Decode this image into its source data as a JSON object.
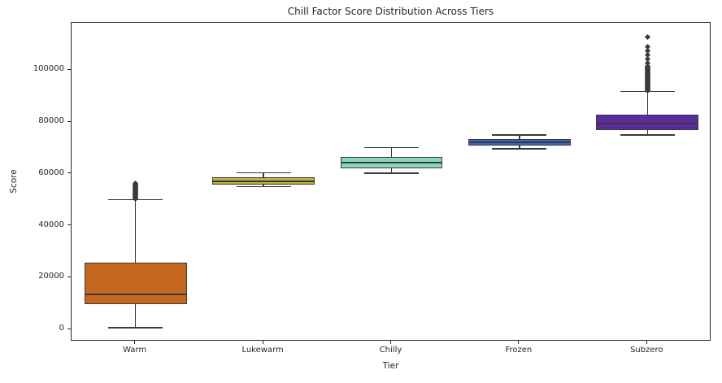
{
  "chart_data": {
    "type": "box",
    "title": "Chill Factor Score Distribution Across Tiers",
    "xlabel": "Tier",
    "ylabel": "Score",
    "categories": [
      "Warm",
      "Lukewarm",
      "Chilly",
      "Frozen",
      "Subzero"
    ],
    "ylim": [
      -4700,
      118300
    ],
    "yticks": [
      0,
      20000,
      40000,
      60000,
      80000,
      100000
    ],
    "grid": false,
    "legend": false,
    "edge_color": "#3a3a3a",
    "spine_color": "#262626",
    "background_color": "#ffffff",
    "series": [
      {
        "name": "Warm",
        "color": "#c5671e",
        "whislo": 600,
        "q1": 9700,
        "med": 13500,
        "q3": 25800,
        "whishi": 50000,
        "outliers": [
          50400,
          50650,
          50900,
          51150,
          51400,
          51650,
          51900,
          52150,
          52400,
          52650,
          52900,
          53150,
          53400,
          53650,
          53900,
          54150,
          54400,
          54650,
          54900,
          55150,
          55400,
          55650,
          55900,
          56150,
          56300
        ]
      },
      {
        "name": "Lukewarm",
        "color": "#c2b13e",
        "whislo": 55000,
        "q1": 55900,
        "med": 57200,
        "q3": 58600,
        "whishi": 60400,
        "outliers": []
      },
      {
        "name": "Chilly",
        "color": "#87d7bf",
        "whislo": 60200,
        "q1": 62000,
        "med": 64200,
        "q3": 66500,
        "whishi": 70100,
        "outliers": []
      },
      {
        "name": "Frozen",
        "color": "#3e63c5",
        "whislo": 69700,
        "q1": 70800,
        "med": 72300,
        "q3": 73500,
        "whishi": 75000,
        "outliers": []
      },
      {
        "name": "Subzero",
        "color": "#5b2c9e",
        "whislo": 75000,
        "q1": 77000,
        "med": 79400,
        "q3": 82800,
        "whishi": 91800,
        "outliers": [
          92200,
          92500,
          92800,
          93100,
          93400,
          93700,
          94000,
          94300,
          94600,
          94900,
          95200,
          95500,
          95800,
          96100,
          96400,
          96700,
          97000,
          97300,
          97600,
          97900,
          98200,
          98500,
          98800,
          99100,
          99400,
          99700,
          100000,
          100300,
          100600,
          100900,
          101200,
          101500,
          102700,
          104200,
          105800,
          107400,
          109000,
          112800
        ]
      }
    ]
  }
}
